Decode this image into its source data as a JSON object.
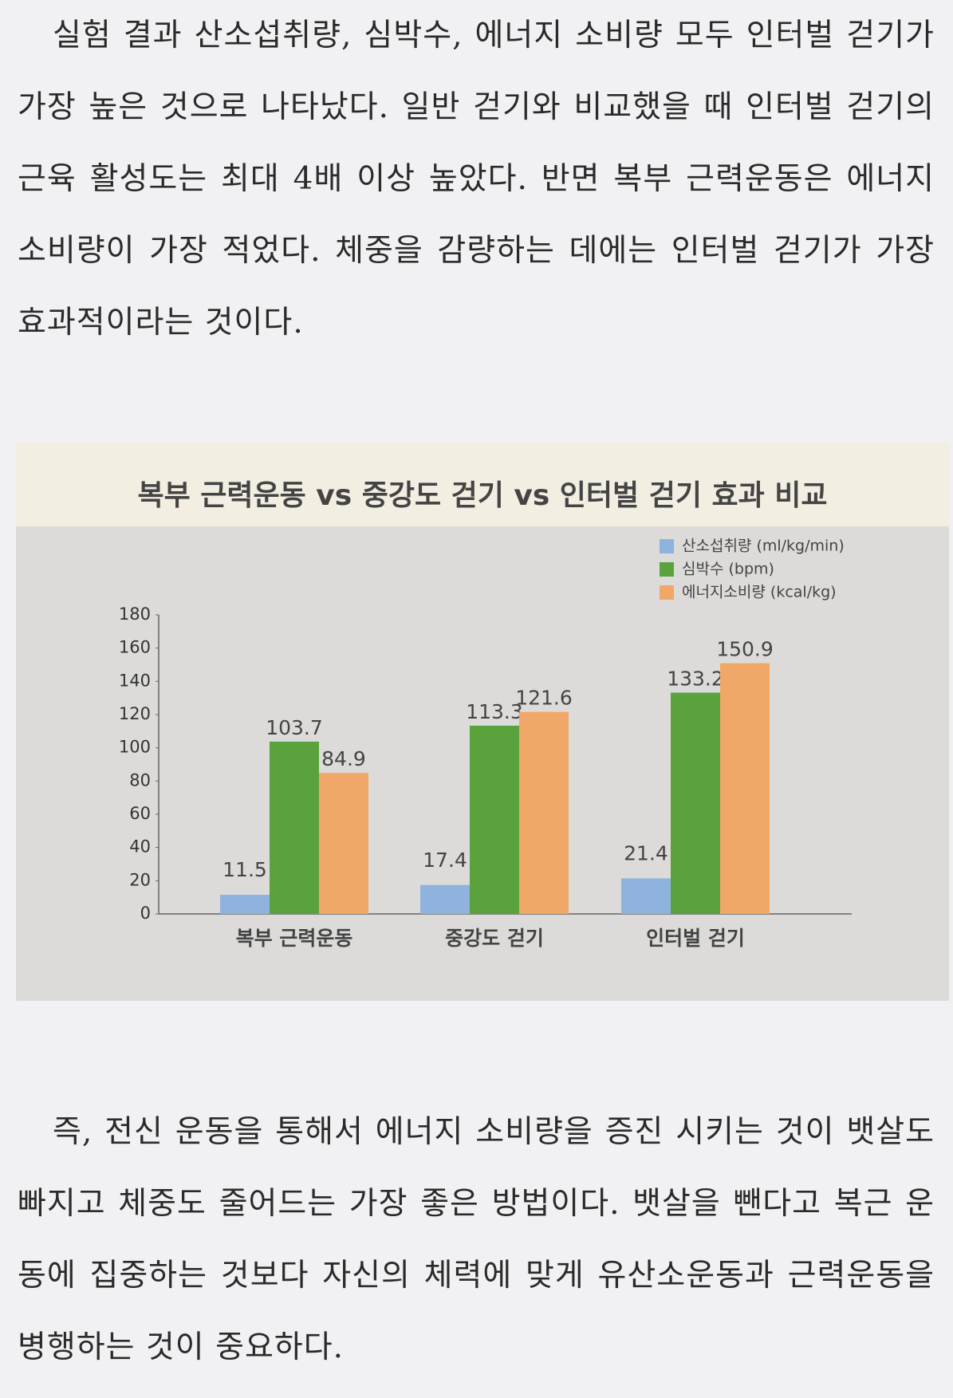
{
  "paragraphs": [
    "실험 결과 산소섭취량, 심박수, 에너지 소비량 모두 인터벌 걷기가 가장 높은 것으로 나타났다. 일반 걷기와 비교했을 때 인터벌 걷기의 근육 활성도는 최대 4배 이상 높았다. 반면 복부 근력운동은 에너지 소비량이 가장 적었다. 체중을 감량하는 데에는 인터벌 걷기가 가장 효과적이라는 것이다.",
    "즉, 전신 운동을 통해서 에너지 소비량을 증진 시키는 것이 뱃살도 빠지고 체중도 줄어드는 가장 좋은 방법이다. 뱃살을 뺀다고 복근 운동에 집중하는 것보다 자신의 체력에 맞게 유산소운동과 근력운동을 병행하는 것이 중요하다."
  ],
  "chart_data": {
    "type": "bar",
    "title": "복부 근력운동 vs 중강도 걷기 vs 인터벌 걷기 효과 비교",
    "categories": [
      "복부 근력운동",
      "중강도 걷기",
      "인터벌 걷기"
    ],
    "series": [
      {
        "name": "산소섭취량 (ml/kg/min)",
        "color": "#8fb3dc",
        "values": [
          11.5,
          17.4,
          21.4
        ]
      },
      {
        "name": "심박수 (bpm)",
        "color": "#5aa33c",
        "values": [
          103.7,
          113.3,
          133.2
        ]
      },
      {
        "name": "에너지소비량 (kcal/kg)",
        "color": "#f0a868",
        "values": [
          84.9,
          121.6,
          150.9
        ]
      }
    ],
    "ylim": [
      0,
      180
    ],
    "yticks": [
      0,
      20,
      40,
      60,
      80,
      100,
      120,
      140,
      160,
      180
    ],
    "grid": false,
    "legend": "top-right"
  }
}
